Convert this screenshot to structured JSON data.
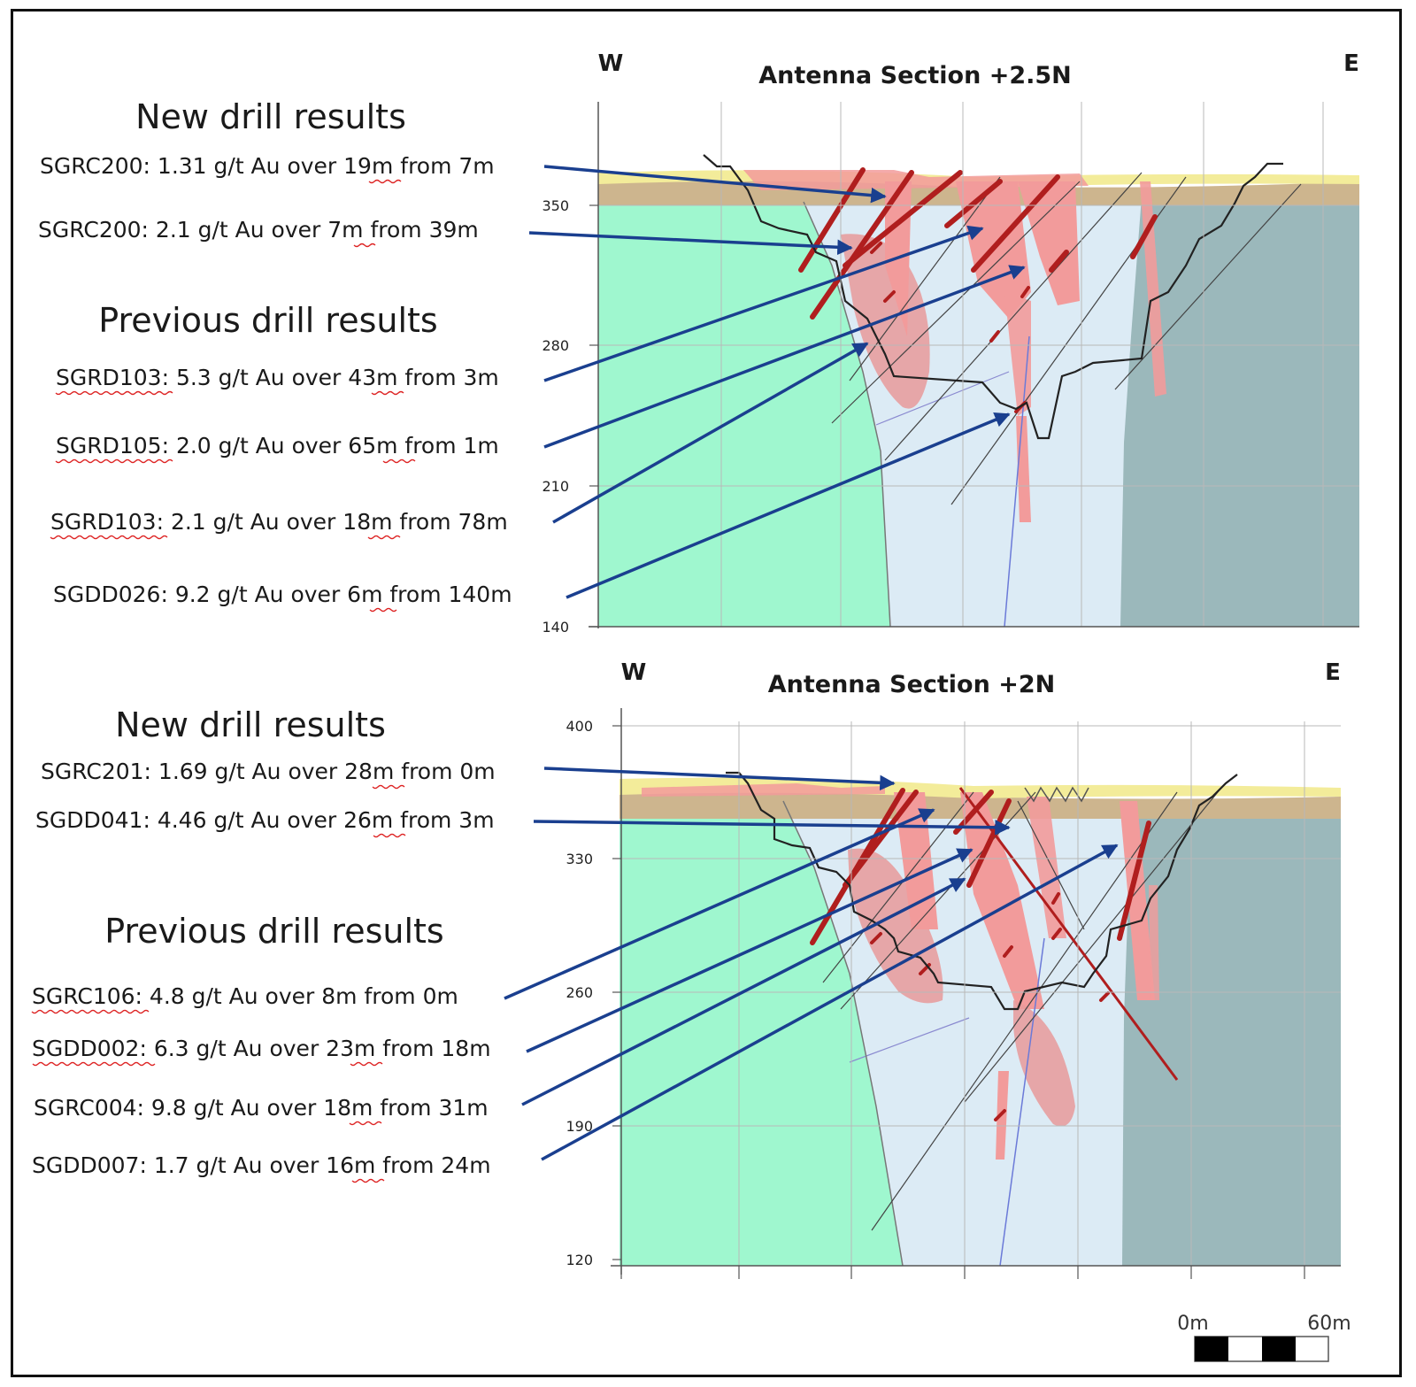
{
  "sections": [
    {
      "title": "Antenna Section +2.5N",
      "west": "W",
      "east": "E",
      "elevation_ticks": [
        "350",
        "280",
        "210",
        "140"
      ],
      "new_header": "New drill results",
      "previous_header": "Previous drill results",
      "new_results": [
        {
          "hole": "SGRC200",
          "text": "SGRC200: 1.31 g/t Au over 19m from 7m"
        },
        {
          "hole": "SGRC200",
          "text": "SGRC200: 2.1 g/t Au over 7m from 39m"
        }
      ],
      "previous_results": [
        {
          "hole": "SGRD103",
          "text": "SGRD103: 5.3 g/t Au over 43m from 3m"
        },
        {
          "hole": "SGRD105",
          "text": "SGRD105: 2.0 g/t Au over 65m from 1m"
        },
        {
          "hole": "SGRD103",
          "text": "SGRD103: 2.1 g/t Au over 18m from 78m"
        },
        {
          "hole": "SGDD026",
          "text": "SGDD026: 9.2 g/t Au over 6m from 140m"
        }
      ]
    },
    {
      "title": "Antenna Section +2N",
      "west": "W",
      "east": "E",
      "elevation_ticks": [
        "400",
        "330",
        "260",
        "190",
        "120"
      ],
      "new_header": "New drill results",
      "previous_header": "Previous drill results",
      "new_results": [
        {
          "hole": "SGRC201",
          "text": "SGRC201: 1.69 g/t Au over 28m from 0m"
        },
        {
          "hole": "SGDD041",
          "text": "SGDD041: 4.46 g/t Au over 26m from 3m"
        }
      ],
      "previous_results": [
        {
          "hole": "SGRC106",
          "text": "SGRC106: 4.8 g/t Au over 8m from 0m"
        },
        {
          "hole": "SGDD002",
          "text": "SGDD002: 6.3 g/t Au over 23m from 18m"
        },
        {
          "hole": "SGRC004",
          "text": "SGRC004: 9.8 g/t Au over 18m from 31m"
        },
        {
          "hole": "SGDD007",
          "text": "SGDD007: 1.7 g/t Au over 16m from 24m"
        }
      ]
    }
  ],
  "scale_bar": {
    "start_label": "0m",
    "end_label": "60m"
  },
  "colors": {
    "west_unit": "#9ff7cf",
    "central_unit": "#dcebf5",
    "east_unit": "#9bb8bb",
    "cover_yellow": "#f3ec9a",
    "cover_tan": "#cdb58e",
    "mineralisation": "#f29b9b",
    "drill_intercept": "#b01e1e",
    "arrow": "#1a3f8f",
    "pit_outline": "#222222"
  }
}
